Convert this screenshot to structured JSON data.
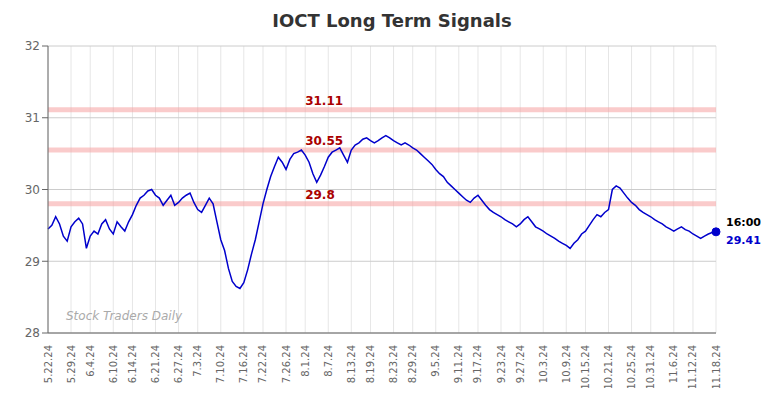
{
  "chart_data": {
    "type": "line",
    "title": "IOCT Long Term Signals",
    "watermark": "Stock Traders Daily",
    "ylim": [
      28,
      32
    ],
    "yticks": [
      28,
      29,
      30,
      31,
      32
    ],
    "grid": true,
    "color": "#0000cc",
    "endpoint_color": "#0000cc",
    "hlines": [
      {
        "y": 31.11,
        "label": "31.11",
        "color": "#f5a0a0",
        "label_color": "#aa0000"
      },
      {
        "y": 30.55,
        "label": "30.55",
        "color": "#f5a0a0",
        "label_color": "#aa0000"
      },
      {
        "y": 29.8,
        "label": "29.8",
        "color": "#f5a0a0",
        "label_color": "#aa0000"
      }
    ],
    "end_annotation": {
      "label": "16:00",
      "value_label": "29.41",
      "label_color": "#000000",
      "value_color": "#0000cc"
    },
    "categories": [
      "5.22.24",
      null,
      null,
      null,
      null,
      null,
      "5.29.24",
      null,
      null,
      null,
      null,
      "6.4.24",
      null,
      null,
      null,
      null,
      null,
      "6.10.24",
      null,
      null,
      null,
      null,
      "6.14.24",
      null,
      null,
      null,
      null,
      null,
      "6.21.24",
      null,
      null,
      null,
      null,
      null,
      "6.27.24",
      null,
      null,
      null,
      null,
      "7.3.24",
      null,
      null,
      null,
      null,
      null,
      "7.10.24",
      null,
      null,
      null,
      null,
      null,
      "7.16.24",
      null,
      null,
      null,
      null,
      "7.22.24",
      null,
      null,
      null,
      null,
      null,
      "7.26.24",
      null,
      null,
      null,
      null,
      "8.1.24",
      null,
      null,
      null,
      null,
      null,
      "8.7.24",
      null,
      null,
      null,
      null,
      null,
      "8.13.24",
      null,
      null,
      null,
      null,
      "8.19.24",
      null,
      null,
      null,
      null,
      null,
      "8.23.24",
      null,
      null,
      null,
      null,
      "8.29.24",
      null,
      null,
      null,
      null,
      null,
      "9.5.24",
      null,
      null,
      null,
      null,
      null,
      "9.11.24",
      null,
      null,
      null,
      null,
      "9.17.24",
      null,
      null,
      null,
      null,
      null,
      "9.23.24",
      null,
      null,
      null,
      null,
      "9.27.24",
      null,
      null,
      null,
      null,
      null,
      "10.3.24",
      null,
      null,
      null,
      null,
      null,
      "10.9.24",
      null,
      null,
      null,
      null,
      "10.15.24",
      null,
      null,
      null,
      null,
      null,
      "10.21.24",
      null,
      null,
      null,
      null,
      null,
      "10.25.24",
      null,
      null,
      null,
      null,
      "10.31.24",
      null,
      null,
      null,
      null,
      null,
      "11.6.24",
      null,
      null,
      null,
      null,
      "11.12.24",
      null,
      null,
      null,
      null,
      null,
      "11.18.24"
    ],
    "values": [
      29.45,
      29.5,
      29.62,
      29.52,
      29.35,
      29.28,
      29.48,
      29.55,
      29.6,
      29.52,
      29.18,
      29.35,
      29.42,
      29.38,
      29.52,
      29.58,
      29.45,
      29.38,
      29.55,
      29.48,
      29.42,
      29.55,
      29.65,
      29.78,
      29.88,
      29.92,
      29.98,
      30.0,
      29.92,
      29.88,
      29.78,
      29.85,
      29.92,
      29.78,
      29.82,
      29.88,
      29.92,
      29.95,
      29.82,
      29.72,
      29.68,
      29.78,
      29.88,
      29.8,
      29.55,
      29.3,
      29.15,
      28.9,
      28.72,
      28.65,
      28.62,
      28.7,
      28.88,
      29.1,
      29.3,
      29.55,
      29.8,
      30.0,
      30.18,
      30.32,
      30.45,
      30.38,
      30.28,
      30.42,
      30.5,
      30.52,
      30.55,
      30.48,
      30.38,
      30.22,
      30.1,
      30.2,
      30.32,
      30.45,
      30.52,
      30.55,
      30.58,
      30.48,
      30.38,
      30.55,
      30.62,
      30.65,
      30.7,
      30.72,
      30.68,
      30.65,
      30.68,
      30.72,
      30.75,
      30.72,
      30.68,
      30.65,
      30.62,
      30.65,
      30.62,
      30.58,
      30.55,
      30.5,
      30.45,
      30.4,
      30.35,
      30.28,
      30.22,
      30.18,
      30.1,
      30.05,
      30.0,
      29.95,
      29.9,
      29.85,
      29.82,
      29.88,
      29.92,
      29.85,
      29.78,
      29.72,
      29.68,
      29.65,
      29.62,
      29.58,
      29.55,
      29.52,
      29.48,
      29.52,
      29.58,
      29.62,
      29.55,
      29.48,
      29.45,
      29.42,
      29.38,
      29.35,
      29.32,
      29.28,
      29.25,
      29.22,
      29.18,
      29.25,
      29.3,
      29.38,
      29.42,
      29.5,
      29.58,
      29.65,
      29.62,
      29.68,
      29.72,
      30.0,
      30.05,
      30.02,
      29.95,
      29.88,
      29.82,
      29.78,
      29.72,
      29.68,
      29.65,
      29.62,
      29.58,
      29.55,
      29.52,
      29.48,
      29.45,
      29.42,
      29.45,
      29.48,
      29.44,
      29.42,
      29.38,
      29.35,
      29.32,
      29.35,
      29.38,
      29.4,
      29.41
    ]
  }
}
